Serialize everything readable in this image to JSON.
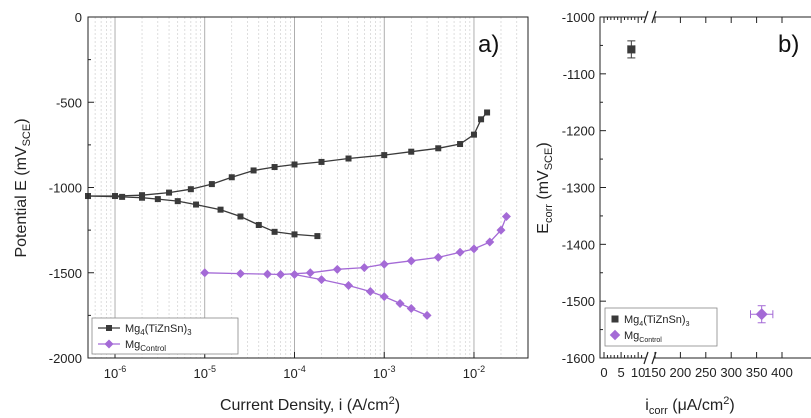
{
  "colors": {
    "mg4": "#3a3a3a",
    "control": "#a46ad6",
    "grid": "#c8c8c8",
    "frame": "#222222"
  },
  "chart_data": [
    {
      "type": "line",
      "panel_label": "a)",
      "xlabel": "Current Density, i (A/cm",
      "xlabel_sup": "2",
      "xlabel_end": ")",
      "ylabel": "Potential E (mV",
      "ylabel_sub": "SCE",
      "ylabel_end": ")",
      "x_scale": "log",
      "xlim": [
        5e-07,
        0.04
      ],
      "ylim": [
        -2000,
        0
      ],
      "x_ticks": [
        {
          "base": "10",
          "exp": "-6",
          "value": 1e-06
        },
        {
          "base": "10",
          "exp": "-5",
          "value": 1e-05
        },
        {
          "base": "10",
          "exp": "-4",
          "value": 0.0001
        },
        {
          "base": "10",
          "exp": "-3",
          "value": 0.001
        },
        {
          "base": "10",
          "exp": "-2",
          "value": 0.01
        }
      ],
      "y_ticks": [
        {
          "label": "0",
          "value": 0
        },
        {
          "label": "-500",
          "value": -500
        },
        {
          "label": "-1000",
          "value": -1000
        },
        {
          "label": "-1500",
          "value": -1500
        },
        {
          "label": "-2000",
          "value": -2000
        }
      ],
      "grid": "x-log-vertical",
      "legend_position": "bottom-left",
      "series": [
        {
          "name": "Mg",
          "name_sub": "4",
          "name_end": "(TiZnSn)",
          "name_sub2": "3",
          "color_key": "mg4",
          "marker": "square",
          "anodic": [
            [
              5e-07,
              -1050
            ],
            [
              1e-06,
              -1050
            ],
            [
              2e-06,
              -1045
            ],
            [
              4e-06,
              -1030
            ],
            [
              7e-06,
              -1010
            ],
            [
              1.2e-05,
              -980
            ],
            [
              2e-05,
              -940
            ],
            [
              3.5e-05,
              -900
            ],
            [
              6e-05,
              -880
            ],
            [
              0.0001,
              -865
            ],
            [
              0.0002,
              -850
            ],
            [
              0.0004,
              -830
            ],
            [
              0.001,
              -810
            ],
            [
              0.002,
              -790
            ],
            [
              0.004,
              -770
            ],
            [
              0.007,
              -745
            ],
            [
              0.01,
              -690
            ],
            [
              0.012,
              -600
            ],
            [
              0.014,
              -560
            ]
          ],
          "cathodic": [
            [
              5e-07,
              -1050
            ],
            [
              1.2e-06,
              -1055
            ],
            [
              2e-06,
              -1060
            ],
            [
              3e-06,
              -1068
            ],
            [
              5e-06,
              -1080
            ],
            [
              8e-06,
              -1100
            ],
            [
              1.5e-05,
              -1130
            ],
            [
              2.5e-05,
              -1170
            ],
            [
              4e-05,
              -1220
            ],
            [
              6e-05,
              -1260
            ],
            [
              0.0001,
              -1275
            ],
            [
              0.00018,
              -1285
            ]
          ]
        },
        {
          "name": "Mg",
          "name_sub": "Control",
          "color_key": "control",
          "marker": "diamond",
          "anodic": [
            [
              1e-05,
              -1500
            ],
            [
              2.5e-05,
              -1505
            ],
            [
              5e-05,
              -1508
            ],
            [
              7e-05,
              -1510
            ],
            [
              0.00015,
              -1500
            ],
            [
              0.0003,
              -1480
            ],
            [
              0.0006,
              -1470
            ],
            [
              0.001,
              -1450
            ],
            [
              0.002,
              -1430
            ],
            [
              0.004,
              -1410
            ],
            [
              0.007,
              -1380
            ],
            [
              0.01,
              -1360
            ],
            [
              0.015,
              -1320
            ],
            [
              0.02,
              -1250
            ],
            [
              0.023,
              -1170
            ]
          ],
          "cathodic": [
            [
              0.0001,
              -1510
            ],
            [
              0.0002,
              -1540
            ],
            [
              0.0004,
              -1575
            ],
            [
              0.0007,
              -1610
            ],
            [
              0.001,
              -1640
            ],
            [
              0.0015,
              -1680
            ],
            [
              0.002,
              -1710
            ],
            [
              0.003,
              -1750
            ]
          ]
        }
      ]
    },
    {
      "type": "scatter",
      "panel_label": "b)",
      "xlabel": "i",
      "xlabel_sub": "corr",
      "xlabel_mid": " (μA/cm",
      "xlabel_sup": "2",
      "xlabel_end": ")",
      "ylabel": "E",
      "ylabel_sub": "corr",
      "ylabel_mid": " (mV",
      "ylabel_sub2": "SCE",
      "ylabel_end": ")",
      "x_axis_break": true,
      "x_ticks": [
        "0",
        "5",
        "10",
        "150",
        "200",
        "250",
        "300",
        "350",
        "400"
      ],
      "y_ticks": [
        "-1000",
        "-1100",
        "-1200",
        "-1300",
        "-1400",
        "-1500",
        "-1600"
      ],
      "ylim": [
        -1600,
        -1000
      ],
      "legend_position": "bottom-left",
      "series": [
        {
          "name": "Mg",
          "name_sub": "4",
          "name_end": "(TiZnSn)",
          "name_sub2": "3",
          "color_key": "mg4",
          "marker": "square",
          "x": 8,
          "y": -1057,
          "x_err": 1,
          "y_err": 15
        },
        {
          "name": "Mg",
          "name_sub": "Control",
          "color_key": "control",
          "marker": "diamond",
          "x": 360,
          "y": -1523,
          "x_err": 22,
          "y_err": 15
        }
      ]
    }
  ]
}
